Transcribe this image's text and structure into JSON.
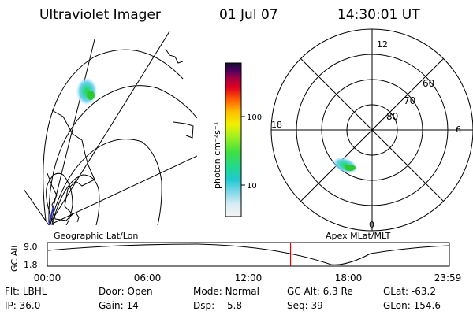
{
  "header": {
    "title": "Ultraviolet Imager",
    "date": "01 Jul 07",
    "time": "14:30:01 UT"
  },
  "colorbar": {
    "label": "photon cm⁻²s⁻¹",
    "ticks": [
      "100",
      "10"
    ]
  },
  "polar": {
    "mlt_labels": {
      "top": "12",
      "bottom": "0",
      "left": "18",
      "right": "6"
    },
    "lat_labels": [
      "60",
      "70",
      "80"
    ]
  },
  "timeline": {
    "ylabel": "GC Alt",
    "yticks": [
      "9.0",
      "1.8"
    ],
    "left_title": "Geographic Lat/Lon",
    "right_title": "Apex MLat/MLT",
    "xticks": [
      "00:00",
      "06:00",
      "12:00",
      "18:00",
      "23:59"
    ],
    "current_time_fraction": 0.605
  },
  "info": {
    "row1": [
      {
        "label": "Flt:",
        "value": "LBHL"
      },
      {
        "label": "Door:",
        "value": "Open"
      },
      {
        "label": "Mode:",
        "value": "Normal"
      },
      {
        "label": "GC Alt:",
        "value": "6.3 Re"
      },
      {
        "label": "GLat:",
        "value": "-63.2"
      }
    ],
    "row2": [
      {
        "label": "IP:",
        "value": "36.0"
      },
      {
        "label": "Gain:",
        "value": "14"
      },
      {
        "label": "Dsp:",
        "value": "-5.8"
      },
      {
        "label": "Seq:",
        "value": "39"
      },
      {
        "label": "GLon:",
        "value": "154.6"
      }
    ]
  },
  "colors": {
    "foreground": "#000000",
    "marker": "#e00000"
  }
}
